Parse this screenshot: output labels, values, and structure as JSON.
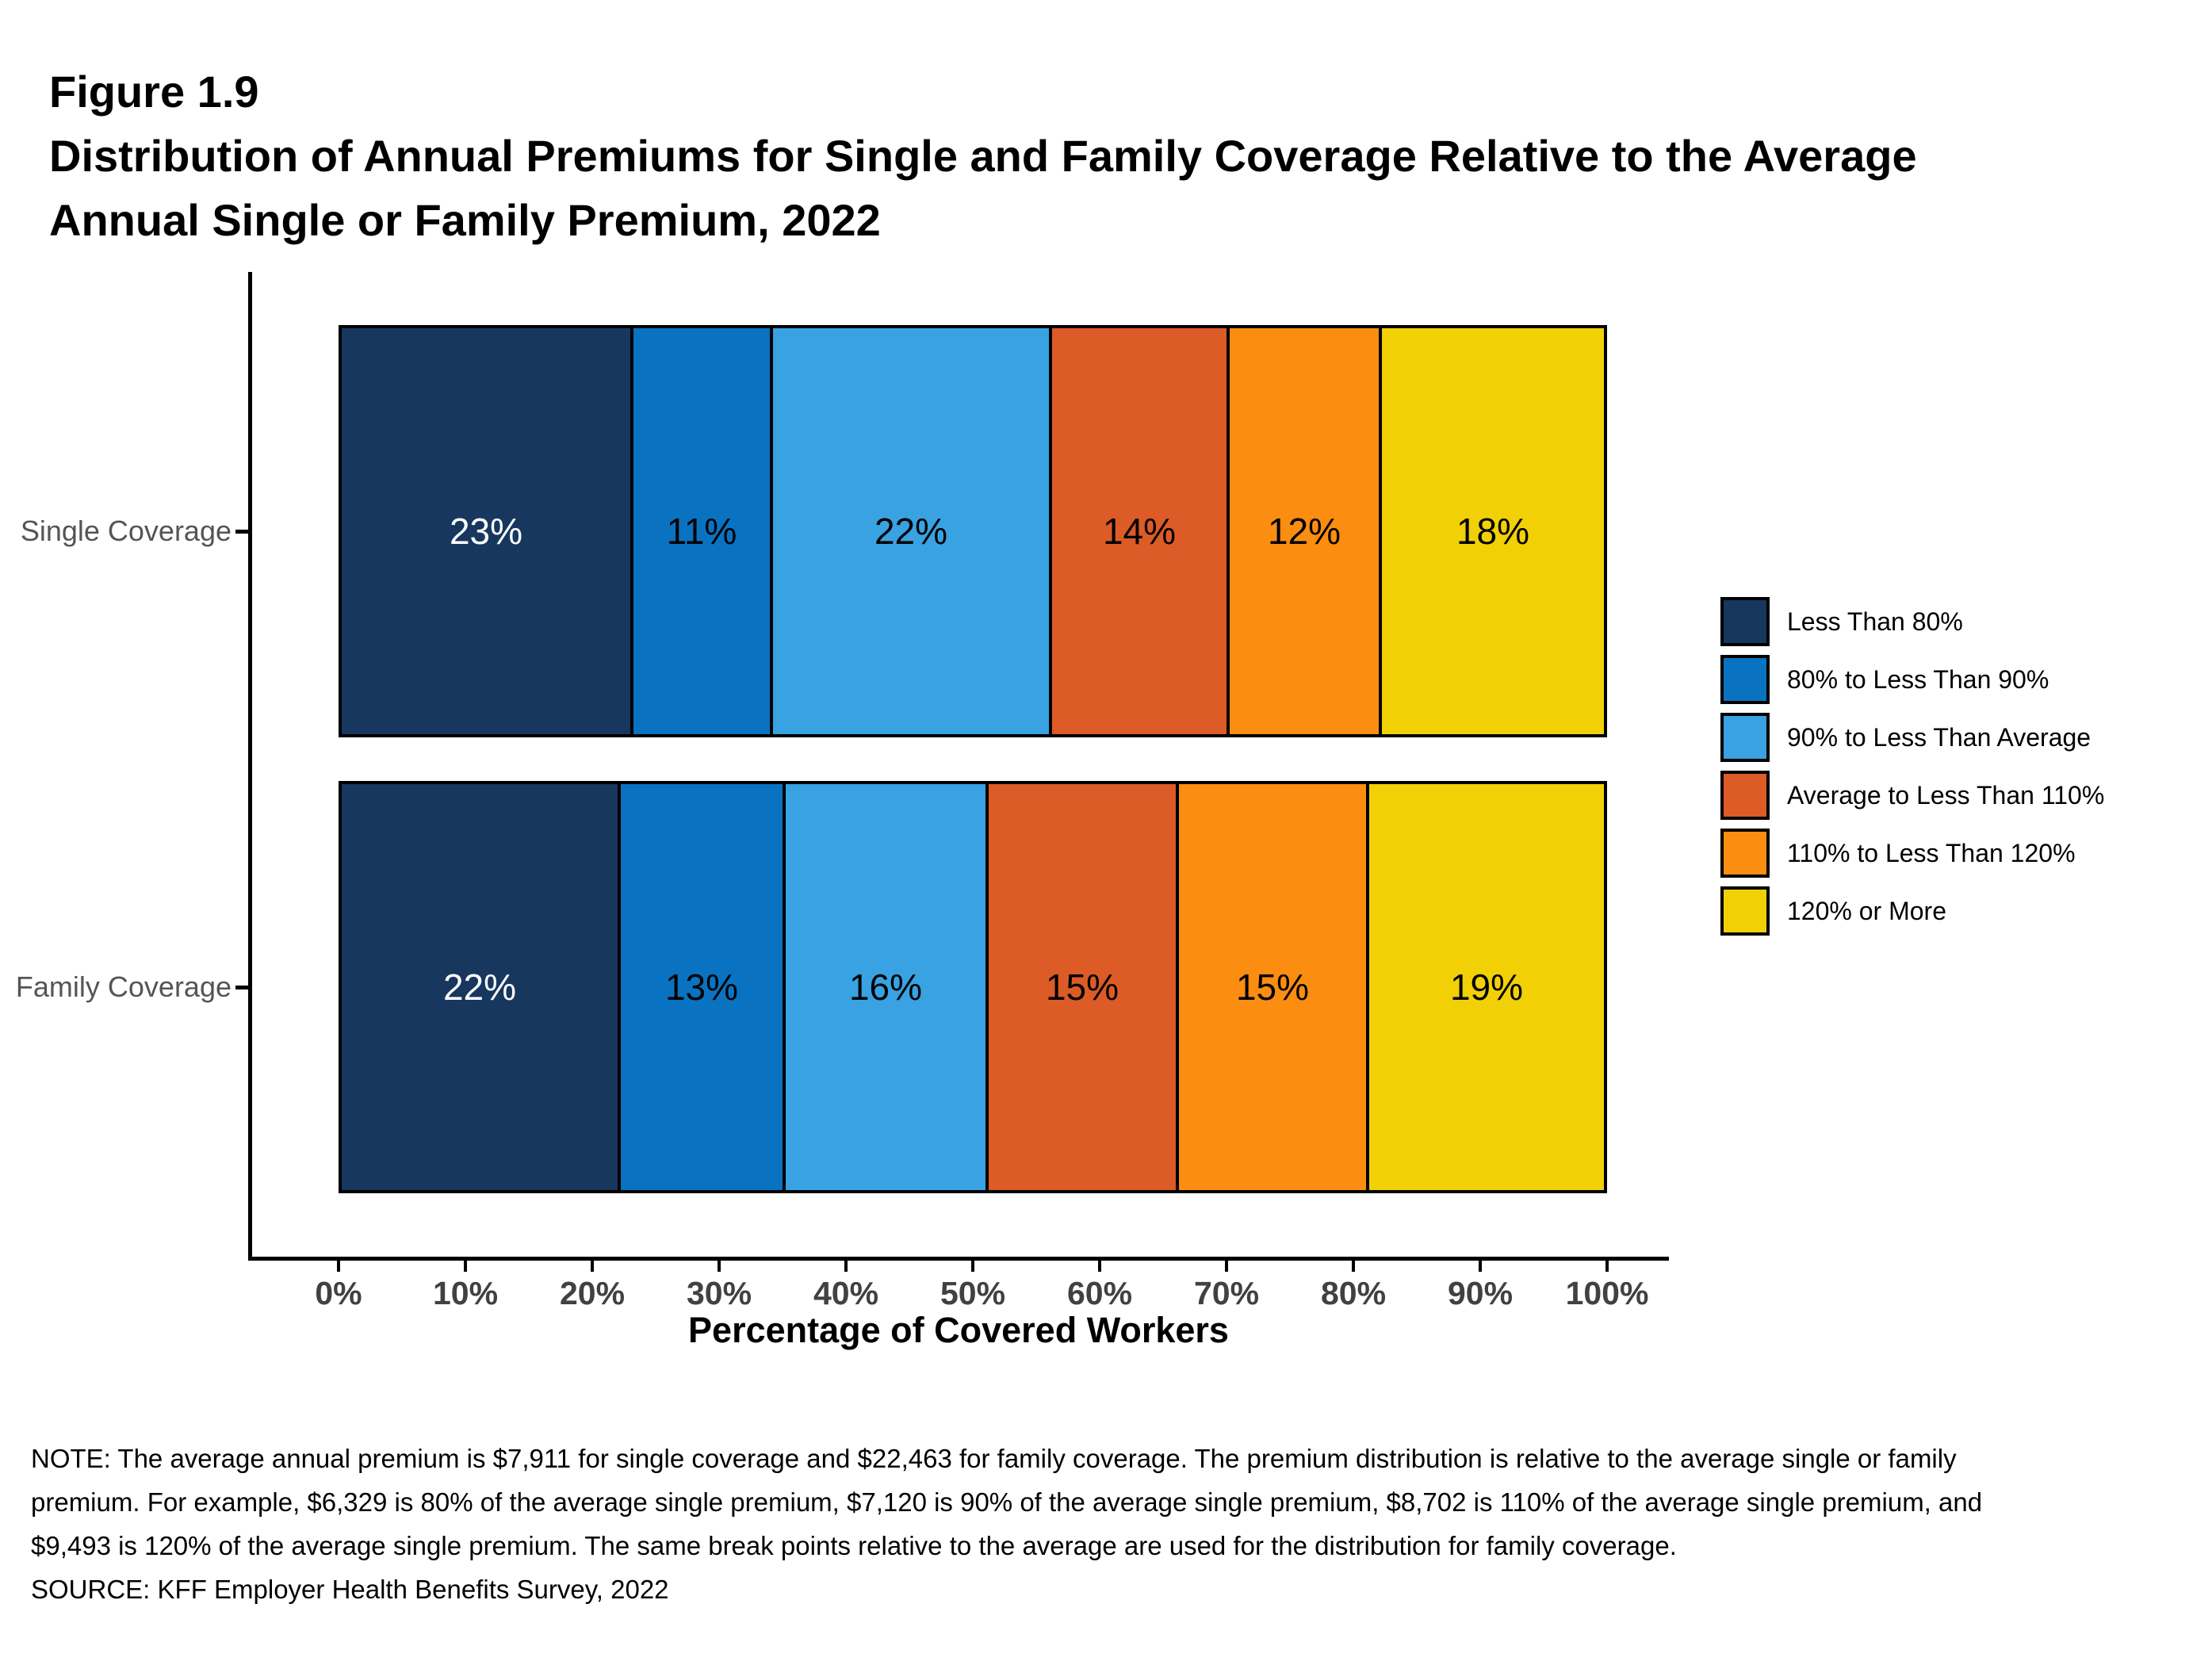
{
  "figure": {
    "label": "Figure 1.9",
    "title_lines": [
      "Distribution of Annual Premiums for Single and Family Coverage Relative to the Average",
      "Annual Single or Family Premium, 2022"
    ]
  },
  "chart_data": {
    "type": "bar",
    "orientation": "horizontal",
    "stacked": true,
    "categories": [
      "Single Coverage",
      "Family Coverage"
    ],
    "series": [
      {
        "name": "Less Than 80%",
        "color": "#17375E",
        "label_color": "#FFFFFF",
        "values": [
          23,
          22
        ]
      },
      {
        "name": "80% to Less Than 90%",
        "color": "#0973C2",
        "label_color": "#000000",
        "values": [
          11,
          13
        ]
      },
      {
        "name": "90% to Less Than Average",
        "color": "#38A2E2",
        "label_color": "#000000",
        "values": [
          22,
          16
        ]
      },
      {
        "name": "Average to Less Than 110%",
        "color": "#DC5B26",
        "label_color": "#000000",
        "values": [
          14,
          15
        ]
      },
      {
        "name": "110% to Less Than 120%",
        "color": "#FB8D11",
        "label_color": "#000000",
        "values": [
          12,
          15
        ]
      },
      {
        "name": "120% or More",
        "color": "#F1D106",
        "label_color": "#000000",
        "values": [
          18,
          19
        ]
      }
    ],
    "xlabel": "Percentage of Covered Workers",
    "x_ticks": [
      "0%",
      "10%",
      "20%",
      "30%",
      "40%",
      "50%",
      "60%",
      "70%",
      "80%",
      "90%",
      "100%"
    ],
    "xlim": [
      0,
      100
    ],
    "value_suffix": "%",
    "legend_position": "right",
    "grid": false
  },
  "footer": {
    "note": "NOTE: The average annual premium is $7,911 for single coverage and $22,463 for family coverage. The premium distribution is relative to the average single or family premium. For example, $6,329 is 80% of the average single premium, $7,120 is 90% of the average single premium, $8,702 is 110% of the average single premium, and $9,493 is 120% of the average single premium. The same break points relative to the average are used for the distribution for family coverage.",
    "source": "SOURCE: KFF Employer Health Benefits Survey, 2022"
  }
}
